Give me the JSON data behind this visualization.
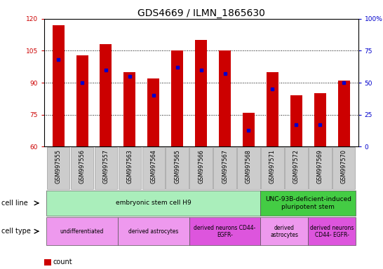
{
  "title": "GDS4669 / ILMN_1865630",
  "samples": [
    "GSM997555",
    "GSM997556",
    "GSM997557",
    "GSM997563",
    "GSM997564",
    "GSM997565",
    "GSM997566",
    "GSM997567",
    "GSM997568",
    "GSM997571",
    "GSM997572",
    "GSM997569",
    "GSM997570"
  ],
  "count_values": [
    117,
    103,
    108,
    95,
    92,
    105,
    110,
    105,
    76,
    95,
    84,
    85,
    91
  ],
  "percentile_values": [
    68,
    50,
    60,
    55,
    40,
    62,
    60,
    57,
    13,
    45,
    17,
    17,
    50
  ],
  "ylim_left": [
    60,
    120
  ],
  "ylim_right": [
    0,
    100
  ],
  "yticks_left": [
    60,
    75,
    90,
    105,
    120
  ],
  "yticks_right": [
    0,
    25,
    50,
    75,
    100
  ],
  "bar_color": "#cc0000",
  "dot_color": "#0000cc",
  "bar_width": 0.5,
  "cell_line_groups": [
    {
      "label": "embryonic stem cell H9",
      "start": 0,
      "end": 8,
      "color": "#aaeebb"
    },
    {
      "label": "UNC-93B-deficient-induced\npluripotent stem",
      "start": 9,
      "end": 12,
      "color": "#44cc44"
    }
  ],
  "cell_type_groups": [
    {
      "label": "undifferentiated",
      "start": 0,
      "end": 2,
      "color": "#ee99ee"
    },
    {
      "label": "derived astrocytes",
      "start": 3,
      "end": 5,
      "color": "#ee99ee"
    },
    {
      "label": "derived neurons CD44-\nEGFR-",
      "start": 6,
      "end": 8,
      "color": "#dd55dd"
    },
    {
      "label": "derived\nastrocytes",
      "start": 9,
      "end": 10,
      "color": "#ee99ee"
    },
    {
      "label": "derived neurons\nCD44- EGFR-",
      "start": 11,
      "end": 12,
      "color": "#dd55dd"
    }
  ],
  "axis_label_color_left": "#cc0000",
  "axis_label_color_right": "#0000cc",
  "title_fontsize": 10,
  "tick_fontsize": 6.5,
  "label_fontsize": 7
}
